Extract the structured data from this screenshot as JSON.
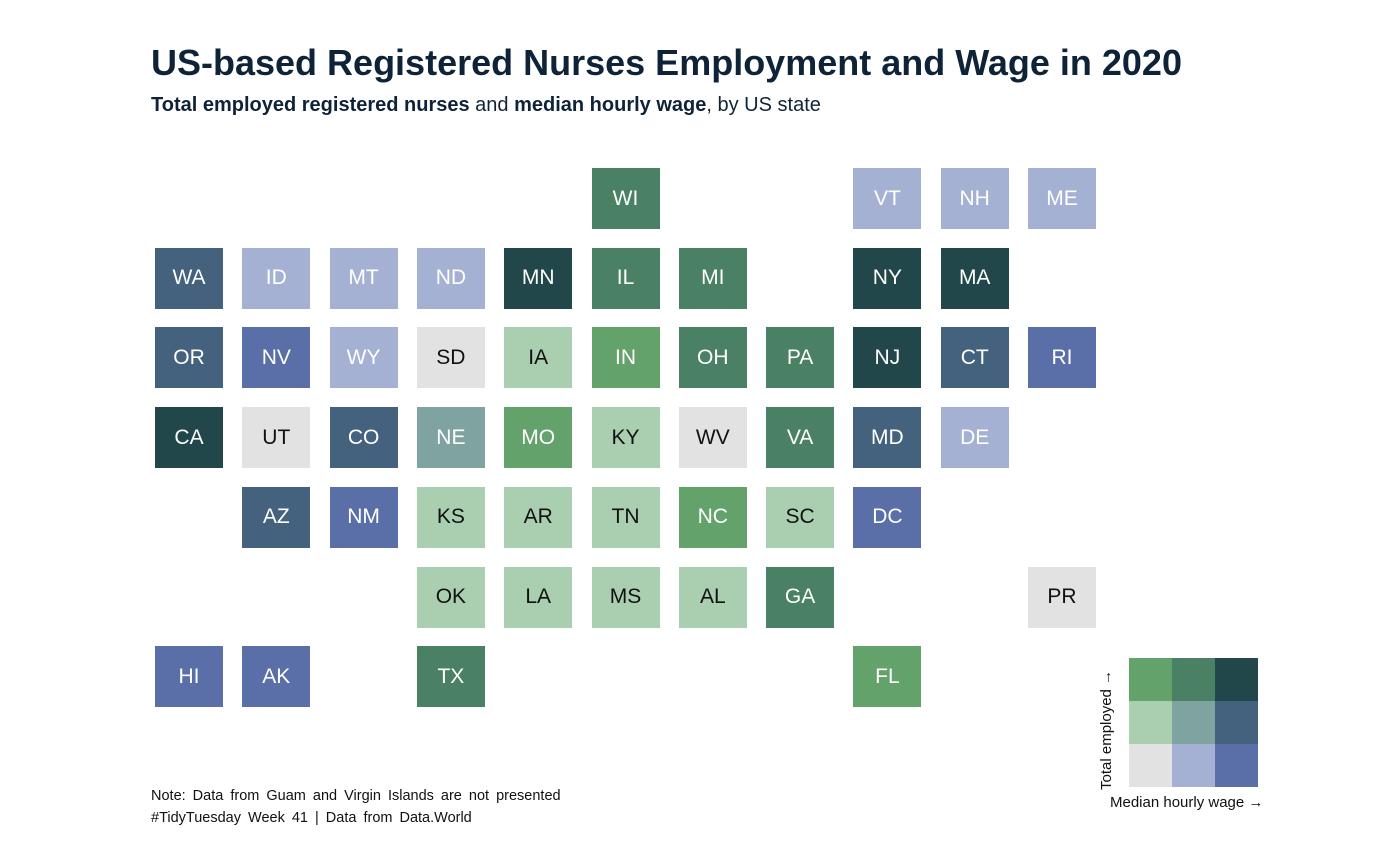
{
  "title": "US-based Registered Nurses Employment and Wage in 2020",
  "subtitle": {
    "part1": "Total employed registered nurses",
    "part2": " and ",
    "part3": "median hourly wage",
    "part4": ", by US state"
  },
  "palette": {
    "1-1": "#e2e2e2",
    "2-1": "#a4b1d2",
    "3-1": "#5a6ea8",
    "1-2": "#a9cfb0",
    "2-2": "#7fa3a1",
    "3-2": "#44627e",
    "1-3": "#63a26b",
    "2-3": "#4a8064",
    "3-3": "#22474a"
  },
  "chart_data": {
    "type": "heatmap",
    "description_axes": {
      "x": "Median hourly wage →",
      "y": "Total employed →"
    },
    "tiles": [
      {
        "state": "WI",
        "col": 6,
        "row": 0,
        "wage": 2,
        "employed": 3
      },
      {
        "state": "VT",
        "col": 9,
        "row": 0,
        "wage": 2,
        "employed": 1
      },
      {
        "state": "NH",
        "col": 10,
        "row": 0,
        "wage": 2,
        "employed": 1
      },
      {
        "state": "ME",
        "col": 11,
        "row": 0,
        "wage": 2,
        "employed": 1
      },
      {
        "state": "WA",
        "col": 1,
        "row": 1,
        "wage": 3,
        "employed": 2
      },
      {
        "state": "ID",
        "col": 2,
        "row": 1,
        "wage": 2,
        "employed": 1
      },
      {
        "state": "MT",
        "col": 3,
        "row": 1,
        "wage": 2,
        "employed": 1
      },
      {
        "state": "ND",
        "col": 4,
        "row": 1,
        "wage": 2,
        "employed": 1
      },
      {
        "state": "MN",
        "col": 5,
        "row": 1,
        "wage": 3,
        "employed": 3
      },
      {
        "state": "IL",
        "col": 6,
        "row": 1,
        "wage": 2,
        "employed": 3
      },
      {
        "state": "MI",
        "col": 7,
        "row": 1,
        "wage": 2,
        "employed": 3
      },
      {
        "state": "NY",
        "col": 9,
        "row": 1,
        "wage": 3,
        "employed": 3
      },
      {
        "state": "MA",
        "col": 10,
        "row": 1,
        "wage": 3,
        "employed": 3
      },
      {
        "state": "OR",
        "col": 1,
        "row": 2,
        "wage": 3,
        "employed": 2
      },
      {
        "state": "NV",
        "col": 2,
        "row": 2,
        "wage": 3,
        "employed": 1
      },
      {
        "state": "WY",
        "col": 3,
        "row": 2,
        "wage": 2,
        "employed": 1
      },
      {
        "state": "SD",
        "col": 4,
        "row": 2,
        "wage": 1,
        "employed": 1
      },
      {
        "state": "IA",
        "col": 5,
        "row": 2,
        "wage": 1,
        "employed": 2
      },
      {
        "state": "IN",
        "col": 6,
        "row": 2,
        "wage": 1,
        "employed": 3
      },
      {
        "state": "OH",
        "col": 7,
        "row": 2,
        "wage": 2,
        "employed": 3
      },
      {
        "state": "PA",
        "col": 8,
        "row": 2,
        "wage": 2,
        "employed": 3
      },
      {
        "state": "NJ",
        "col": 9,
        "row": 2,
        "wage": 3,
        "employed": 3
      },
      {
        "state": "CT",
        "col": 10,
        "row": 2,
        "wage": 3,
        "employed": 2
      },
      {
        "state": "RI",
        "col": 11,
        "row": 2,
        "wage": 3,
        "employed": 1
      },
      {
        "state": "CA",
        "col": 1,
        "row": 3,
        "wage": 3,
        "employed": 3
      },
      {
        "state": "UT",
        "col": 2,
        "row": 3,
        "wage": 1,
        "employed": 1
      },
      {
        "state": "CO",
        "col": 3,
        "row": 3,
        "wage": 3,
        "employed": 2
      },
      {
        "state": "NE",
        "col": 4,
        "row": 3,
        "wage": 2,
        "employed": 2
      },
      {
        "state": "MO",
        "col": 5,
        "row": 3,
        "wage": 1,
        "employed": 3
      },
      {
        "state": "KY",
        "col": 6,
        "row": 3,
        "wage": 1,
        "employed": 2
      },
      {
        "state": "WV",
        "col": 7,
        "row": 3,
        "wage": 1,
        "employed": 1
      },
      {
        "state": "VA",
        "col": 8,
        "row": 3,
        "wage": 2,
        "employed": 3
      },
      {
        "state": "MD",
        "col": 9,
        "row": 3,
        "wage": 3,
        "employed": 2
      },
      {
        "state": "DE",
        "col": 10,
        "row": 3,
        "wage": 2,
        "employed": 1
      },
      {
        "state": "AZ",
        "col": 2,
        "row": 4,
        "wage": 3,
        "employed": 2
      },
      {
        "state": "NM",
        "col": 3,
        "row": 4,
        "wage": 3,
        "employed": 1
      },
      {
        "state": "KS",
        "col": 4,
        "row": 4,
        "wage": 1,
        "employed": 2
      },
      {
        "state": "AR",
        "col": 5,
        "row": 4,
        "wage": 1,
        "employed": 2
      },
      {
        "state": "TN",
        "col": 6,
        "row": 4,
        "wage": 1,
        "employed": 2
      },
      {
        "state": "NC",
        "col": 7,
        "row": 4,
        "wage": 1,
        "employed": 3
      },
      {
        "state": "SC",
        "col": 8,
        "row": 4,
        "wage": 1,
        "employed": 2
      },
      {
        "state": "DC",
        "col": 9,
        "row": 4,
        "wage": 3,
        "employed": 1
      },
      {
        "state": "OK",
        "col": 4,
        "row": 5,
        "wage": 1,
        "employed": 2
      },
      {
        "state": "LA",
        "col": 5,
        "row": 5,
        "wage": 1,
        "employed": 2
      },
      {
        "state": "MS",
        "col": 6,
        "row": 5,
        "wage": 1,
        "employed": 2
      },
      {
        "state": "AL",
        "col": 7,
        "row": 5,
        "wage": 1,
        "employed": 2
      },
      {
        "state": "GA",
        "col": 8,
        "row": 5,
        "wage": 2,
        "employed": 3
      },
      {
        "state": "PR",
        "col": 11,
        "row": 5,
        "wage": 1,
        "employed": 1
      },
      {
        "state": "HI",
        "col": 1,
        "row": 6,
        "wage": 3,
        "employed": 1
      },
      {
        "state": "AK",
        "col": 2,
        "row": 6,
        "wage": 3,
        "employed": 1
      },
      {
        "state": "TX",
        "col": 4,
        "row": 6,
        "wage": 2,
        "employed": 3
      },
      {
        "state": "FL",
        "col": 9,
        "row": 6,
        "wage": 1,
        "employed": 3
      }
    ]
  },
  "legend": {
    "y_label": "Total employed →",
    "x_label": "Median hourly wage →"
  },
  "note": "Note: Data from Guam and Virgin Islands are not presented",
  "credit": "#TidyTuesday Week 41 | Data from Data.World"
}
